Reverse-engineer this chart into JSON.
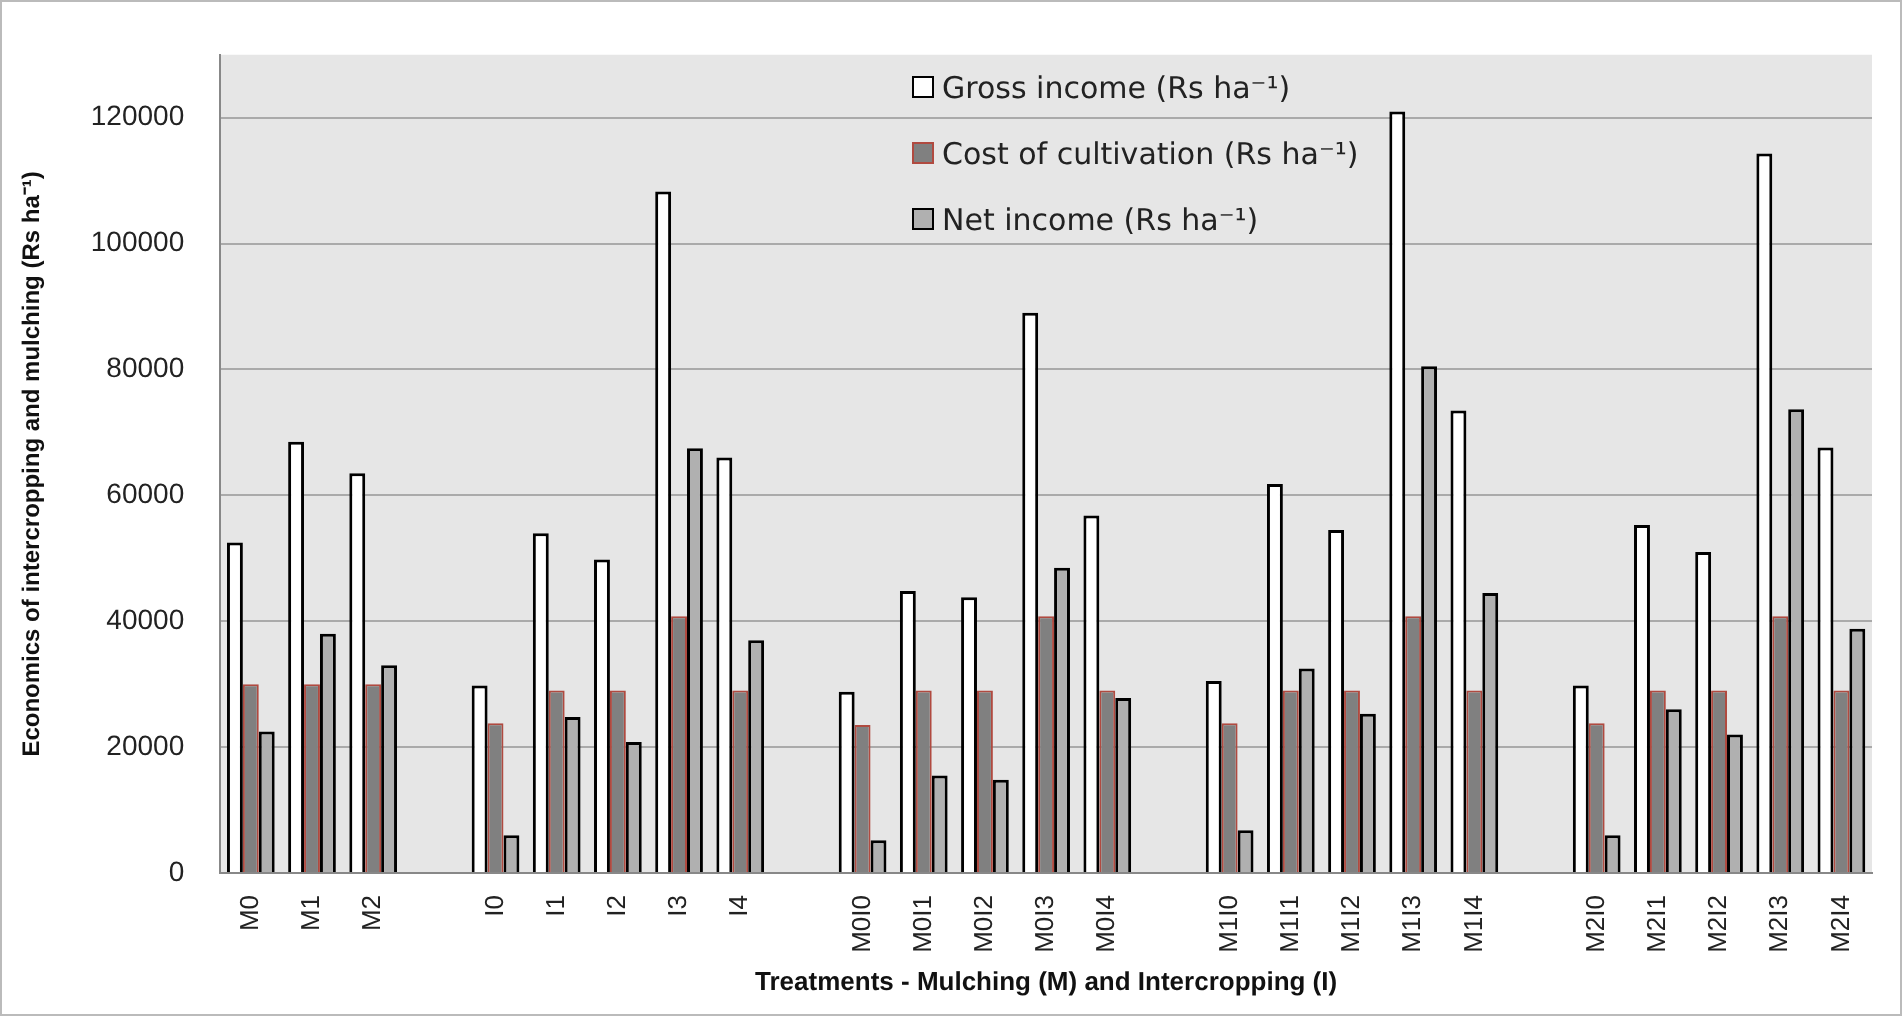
{
  "chart_data": {
    "type": "bar",
    "xlabel": "Treatments - Mulching (M) and Intercropping (I)",
    "ylabel": "Economics of intercropping and mulching (Rs ha⁻¹)",
    "categories": [
      "M0",
      "M1",
      "M2",
      null,
      "I0",
      "I1",
      "I2",
      "I3",
      "I4",
      null,
      "M0I0",
      "M0I1",
      "M0I2",
      "M0I3",
      "M0I4",
      null,
      "M1I0",
      "M1I1",
      "M1I2",
      "M1I3",
      "M1I4",
      null,
      "M2I0",
      "M2I1",
      "M2I2",
      "M2I3",
      "M2I4"
    ],
    "series": [
      {
        "name": "Gross income (Rs ha⁻¹)",
        "color": "#ffffff",
        "values": [
          52500,
          68500,
          63500,
          null,
          29800,
          54000,
          49800,
          108300,
          66000,
          null,
          28800,
          44800,
          43800,
          89000,
          56800,
          null,
          30500,
          61800,
          54500,
          121000,
          73500,
          null,
          29800,
          55300,
          51000,
          114300,
          67600
        ]
      },
      {
        "name": "Cost of cultivation (Rs ha⁻¹)",
        "color": "#808080",
        "values": [
          30000,
          30000,
          30000,
          null,
          23800,
          29000,
          29000,
          40800,
          29000,
          null,
          23500,
          29000,
          29000,
          40800,
          29000,
          null,
          23800,
          29000,
          29000,
          40800,
          29000,
          null,
          23800,
          29000,
          29000,
          40800,
          29000
        ]
      },
      {
        "name": "Net income (Rs ha⁻¹)",
        "color": "#b0b0b0",
        "values": [
          22500,
          38000,
          33000,
          null,
          6000,
          24800,
          20800,
          67500,
          37000,
          null,
          5200,
          15500,
          14800,
          48500,
          27800,
          null,
          6800,
          32500,
          25300,
          80500,
          44500,
          null,
          6000,
          26000,
          22000,
          73700,
          38800
        ]
      }
    ],
    "ylim": [
      0,
      130000
    ],
    "yticks": [
      0,
      20000,
      40000,
      60000,
      80000,
      100000,
      120000
    ],
    "grid": "y",
    "legend": "top"
  }
}
